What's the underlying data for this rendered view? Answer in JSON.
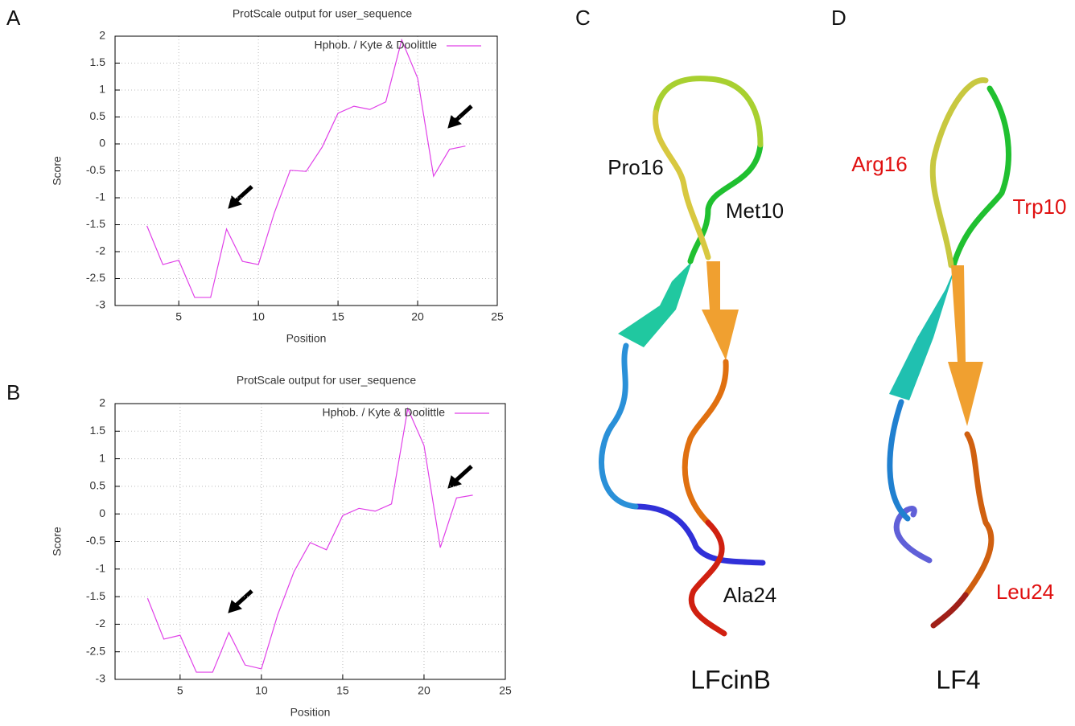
{
  "panel_labels": [
    "A",
    "B",
    "C",
    "D"
  ],
  "chart_data": [
    {
      "type": "line",
      "title": "ProtScale output for user_sequence",
      "x_label": "Position",
      "y_label": "Score",
      "x": [
        3,
        4,
        5,
        6,
        7,
        8,
        9,
        10,
        11,
        12,
        13,
        14,
        15,
        16,
        17,
        18,
        19,
        20,
        21,
        22,
        23
      ],
      "series": [
        {
          "name": "Hphob. / Kyte & Doolittle",
          "color": "#e040e8",
          "values": [
            -1.52,
            -2.24,
            -2.16,
            -2.85,
            -2.85,
            -1.58,
            -2.18,
            -2.24,
            -1.28,
            -0.49,
            -0.51,
            -0.06,
            0.57,
            0.7,
            0.64,
            0.78,
            1.93,
            1.22,
            -0.6,
            -0.1,
            -0.04
          ]
        }
      ],
      "xlim": [
        1,
        25
      ],
      "xticks": [
        5,
        10,
        15,
        20,
        25
      ],
      "ylim": [
        -3,
        2
      ],
      "yticks": [
        -3,
        -2.5,
        -2,
        -1.5,
        -1,
        -0.5,
        0,
        0.5,
        1,
        1.5,
        2
      ],
      "grid": true,
      "legend_position": "upper right"
    },
    {
      "type": "line",
      "title": "ProtScale output for user_sequence",
      "x_label": "Position",
      "y_label": "Score",
      "x": [
        3,
        4,
        5,
        6,
        7,
        8,
        9,
        10,
        11,
        12,
        13,
        14,
        15,
        16,
        17,
        18,
        19,
        20,
        21,
        22,
        23
      ],
      "series": [
        {
          "name": "Hphob. / Kyte & Doolittle",
          "color": "#e040e8",
          "values": [
            -1.53,
            -2.27,
            -2.2,
            -2.87,
            -2.87,
            -2.15,
            -2.74,
            -2.81,
            -1.83,
            -1.05,
            -0.52,
            -0.65,
            -0.03,
            0.1,
            0.05,
            0.18,
            1.91,
            1.24,
            -0.61,
            0.29,
            0.34
          ]
        }
      ],
      "xlim": [
        1,
        25
      ],
      "xticks": [
        5,
        10,
        15,
        20,
        25
      ],
      "ylim": [
        -3,
        2
      ],
      "yticks": [
        -3,
        -2.5,
        -2,
        -1.5,
        -1,
        -0.5,
        0,
        0.5,
        1,
        1.5,
        2
      ],
      "grid": true,
      "legend_position": "upper right"
    }
  ],
  "structures": [
    {
      "name": "LFcinB",
      "residues": [
        "Pro16",
        "Met10",
        "Ala24"
      ],
      "residue_color": "#111111"
    },
    {
      "name": "LF4",
      "residues": [
        "Arg16",
        "Trp10",
        "Leu24"
      ],
      "residue_color": "#e01010"
    }
  ]
}
